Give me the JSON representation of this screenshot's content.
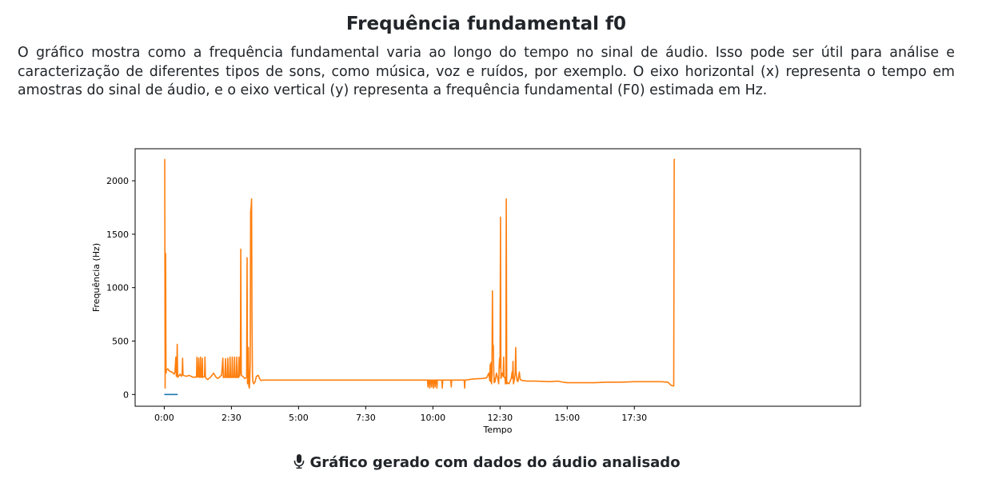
{
  "header": {
    "title": "Frequência fundamental f0",
    "description": "O gráfico mostra como a frequência fundamental varia ao longo do tempo no sinal de áudio. Isso pode ser útil para análise e caracterização de diferentes tipos de sons, como música, voz e ruídos, por exemplo. O eixo horizontal (x) representa o tempo em amostras do sinal de áudio, e o eixo vertical (y) representa a frequência fundamental (F0) estimada em Hz."
  },
  "caption": {
    "icon": "microphone-icon",
    "text": "Gráfico gerado com dados do áudio analisado"
  },
  "chart_data": {
    "type": "line",
    "xlabel": "Tempo",
    "ylabel": "Frequência (Hz)",
    "xlim": [
      -65,
      1555
    ],
    "ylim": [
      -110,
      2300
    ],
    "x_unit": "seconds",
    "x_ticks": [
      {
        "value": 0,
        "label": "0:00"
      },
      {
        "value": 150,
        "label": "2:30"
      },
      {
        "value": 300,
        "label": "5:00"
      },
      {
        "value": 450,
        "label": "7:30"
      },
      {
        "value": 600,
        "label": "10:00"
      },
      {
        "value": 750,
        "label": "12:30"
      },
      {
        "value": 900,
        "label": "15:00"
      },
      {
        "value": 1050,
        "label": "17:30"
      }
    ],
    "y_ticks": [
      {
        "value": 0,
        "label": "0"
      },
      {
        "value": 500,
        "label": "500"
      },
      {
        "value": 1000,
        "label": "1000"
      },
      {
        "value": 1500,
        "label": "1500"
      },
      {
        "value": 2000,
        "label": "2000"
      }
    ],
    "grid": false,
    "legend": "none",
    "series": [
      {
        "color": "#1f77b4",
        "points": [
          [
            0,
            0
          ],
          [
            30,
            0
          ]
        ]
      },
      {
        "color": "#ff7f0e",
        "points": [
          [
            0,
            2200
          ],
          [
            1,
            2200
          ],
          [
            2,
            60
          ],
          [
            3,
            1320
          ],
          [
            4,
            200
          ],
          [
            5,
            230
          ],
          [
            8,
            240
          ],
          [
            11,
            220
          ],
          [
            14,
            215
          ],
          [
            17,
            210
          ],
          [
            20,
            200
          ],
          [
            22,
            190
          ],
          [
            24,
            210
          ],
          [
            26,
            350
          ],
          [
            27,
            170
          ],
          [
            28,
            220
          ],
          [
            29,
            470
          ],
          [
            30,
            160
          ],
          [
            32,
            170
          ],
          [
            35,
            190
          ],
          [
            38,
            170
          ],
          [
            40,
            200
          ],
          [
            41,
            340
          ],
          [
            42,
            180
          ],
          [
            45,
            175
          ],
          [
            50,
            170
          ],
          [
            55,
            180
          ],
          [
            60,
            170
          ],
          [
            65,
            160
          ],
          [
            70,
            165
          ],
          [
            72,
            160
          ],
          [
            73,
            350
          ],
          [
            74,
            170
          ],
          [
            76,
            165
          ],
          [
            77,
            340
          ],
          [
            78,
            160
          ],
          [
            80,
            165
          ],
          [
            81,
            350
          ],
          [
            82,
            160
          ],
          [
            84,
            165
          ],
          [
            85,
            340
          ],
          [
            86,
            160
          ],
          [
            88,
            165
          ],
          [
            90,
            170
          ],
          [
            91,
            350
          ],
          [
            92,
            160
          ],
          [
            94,
            150
          ],
          [
            97,
            140
          ],
          [
            100,
            150
          ],
          [
            105,
            170
          ],
          [
            110,
            200
          ],
          [
            113,
            180
          ],
          [
            116,
            160
          ],
          [
            120,
            150
          ],
          [
            125,
            170
          ],
          [
            128,
            180
          ],
          [
            131,
            340
          ],
          [
            132,
            160
          ],
          [
            135,
            160
          ],
          [
            137,
            335
          ],
          [
            138,
            160
          ],
          [
            141,
            160
          ],
          [
            142,
            340
          ],
          [
            143,
            160
          ],
          [
            146,
            160
          ],
          [
            147,
            350
          ],
          [
            148,
            160
          ],
          [
            151,
            160
          ],
          [
            152,
            350
          ],
          [
            153,
            160
          ],
          [
            156,
            160
          ],
          [
            157,
            350
          ],
          [
            158,
            160
          ],
          [
            161,
            160
          ],
          [
            162,
            350
          ],
          [
            163,
            160
          ],
          [
            166,
            160
          ],
          [
            167,
            350
          ],
          [
            168,
            170
          ],
          [
            169,
            200
          ],
          [
            170,
            200
          ],
          [
            171,
            1360
          ],
          [
            172,
            180
          ],
          [
            175,
            170
          ],
          [
            180,
            150
          ],
          [
            184,
            160
          ],
          [
            185,
            1280
          ],
          [
            186,
            100
          ],
          [
            187,
            120
          ],
          [
            188,
            440
          ],
          [
            189,
            80
          ],
          [
            190,
            60
          ],
          [
            191,
            130
          ],
          [
            192,
            300
          ],
          [
            193,
            1710
          ],
          [
            194,
            1750
          ],
          [
            195,
            1830
          ],
          [
            196,
            700
          ],
          [
            197,
            200
          ],
          [
            198,
            120
          ],
          [
            200,
            100
          ],
          [
            203,
            120
          ],
          [
            206,
            170
          ],
          [
            210,
            180
          ],
          [
            213,
            150
          ],
          [
            216,
            130
          ],
          [
            220,
            135
          ],
          [
            240,
            135
          ],
          [
            270,
            135
          ],
          [
            300,
            135
          ],
          [
            330,
            135
          ],
          [
            360,
            135
          ],
          [
            390,
            135
          ],
          [
            420,
            135
          ],
          [
            450,
            135
          ],
          [
            480,
            135
          ],
          [
            510,
            135
          ],
          [
            540,
            135
          ],
          [
            570,
            135
          ],
          [
            588,
            135
          ],
          [
            589,
            70
          ],
          [
            590,
            135
          ],
          [
            592,
            135
          ],
          [
            593,
            60
          ],
          [
            594,
            135
          ],
          [
            596,
            135
          ],
          [
            597,
            70
          ],
          [
            598,
            135
          ],
          [
            600,
            135
          ],
          [
            601,
            60
          ],
          [
            602,
            135
          ],
          [
            604,
            135
          ],
          [
            605,
            70
          ],
          [
            606,
            135
          ],
          [
            608,
            135
          ],
          [
            609,
            60
          ],
          [
            610,
            135
          ],
          [
            620,
            135
          ],
          [
            621,
            60
          ],
          [
            622,
            135
          ],
          [
            640,
            135
          ],
          [
            641,
            70
          ],
          [
            642,
            135
          ],
          [
            670,
            135
          ],
          [
            671,
            60
          ],
          [
            672,
            135
          ],
          [
            690,
            145
          ],
          [
            710,
            150
          ],
          [
            720,
            155
          ],
          [
            725,
            200
          ],
          [
            727,
            130
          ],
          [
            728,
            280
          ],
          [
            729,
            120
          ],
          [
            730,
            300
          ],
          [
            731,
            100
          ],
          [
            732,
            200
          ],
          [
            733,
            970
          ],
          [
            734,
            420
          ],
          [
            735,
            460
          ],
          [
            736,
            200
          ],
          [
            737,
            110
          ],
          [
            738,
            150
          ],
          [
            739,
            120
          ],
          [
            740,
            150
          ],
          [
            742,
            200
          ],
          [
            745,
            150
          ],
          [
            747,
            100
          ],
          [
            748,
            260
          ],
          [
            749,
            340
          ],
          [
            750,
            250
          ],
          [
            751,
            1660
          ],
          [
            752,
            150
          ],
          [
            755,
            200
          ],
          [
            757,
            170
          ],
          [
            758,
            350
          ],
          [
            759,
            160
          ],
          [
            761,
            160
          ],
          [
            762,
            100
          ],
          [
            763,
            120
          ],
          [
            764,
            1830
          ],
          [
            765,
            100
          ],
          [
            767,
            110
          ],
          [
            770,
            100
          ],
          [
            773,
            130
          ],
          [
            775,
            150
          ],
          [
            777,
            210
          ],
          [
            778,
            150
          ],
          [
            779,
            310
          ],
          [
            780,
            100
          ],
          [
            782,
            140
          ],
          [
            784,
            200
          ],
          [
            785,
            440
          ],
          [
            786,
            200
          ],
          [
            788,
            130
          ],
          [
            790,
            120
          ],
          [
            793,
            210
          ],
          [
            795,
            140
          ],
          [
            800,
            130
          ],
          [
            810,
            125
          ],
          [
            830,
            125
          ],
          [
            860,
            120
          ],
          [
            880,
            125
          ],
          [
            890,
            115
          ],
          [
            900,
            110
          ],
          [
            930,
            110
          ],
          [
            960,
            110
          ],
          [
            990,
            115
          ],
          [
            1020,
            115
          ],
          [
            1050,
            120
          ],
          [
            1080,
            120
          ],
          [
            1110,
            120
          ],
          [
            1125,
            115
          ],
          [
            1132,
            85
          ],
          [
            1136,
            80
          ],
          [
            1138,
            80
          ],
          [
            1139,
            2200
          ],
          [
            1141,
            2200
          ]
        ]
      }
    ]
  }
}
